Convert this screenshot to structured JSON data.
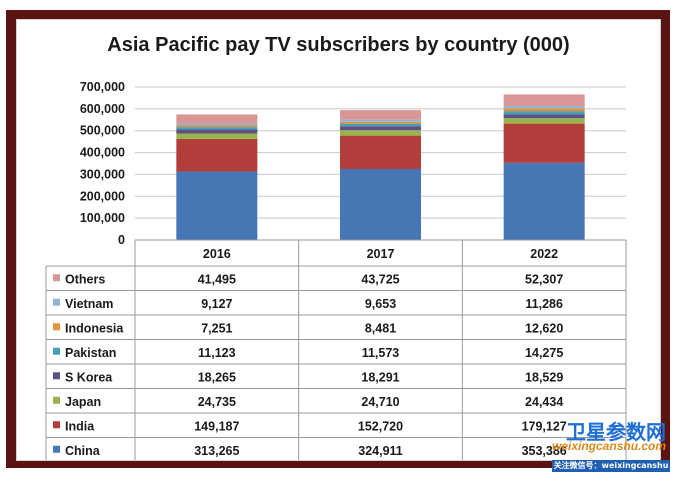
{
  "chart_data": {
    "type": "bar",
    "stacked": true,
    "title": "Asia Pacific pay TV subscribers by country (000)",
    "categories": [
      "2016",
      "2017",
      "2022"
    ],
    "ylim": [
      0,
      700000
    ],
    "yticks": [
      "700,000",
      "600,000",
      "500,000",
      "400,000",
      "300,000",
      "200,000",
      "100,000",
      "0"
    ],
    "ytick_values": [
      700000,
      600000,
      500000,
      400000,
      300000,
      200000,
      100000,
      0
    ],
    "grid": true,
    "legend": "table-rows-below",
    "series": [
      {
        "name": "Others",
        "color": "#d99694",
        "values": [
          41495,
          43725,
          52307
        ],
        "labels": [
          "41,495",
          "43,725",
          "52,307"
        ]
      },
      {
        "name": "Vietnam",
        "color": "#95b3d7",
        "values": [
          9127,
          9653,
          11286
        ],
        "labels": [
          "9,127",
          "9,653",
          "11,286"
        ]
      },
      {
        "name": "Indonesia",
        "color": "#e6913c",
        "values": [
          7251,
          8481,
          12620
        ],
        "labels": [
          "7,251",
          "8,481",
          "12,620"
        ]
      },
      {
        "name": "Pakistan",
        "color": "#46a0b4",
        "values": [
          11123,
          11573,
          14275
        ],
        "labels": [
          "11,123",
          "11,573",
          "14,275"
        ]
      },
      {
        "name": "S Korea",
        "color": "#5e4f85",
        "values": [
          18265,
          18291,
          18529
        ],
        "labels": [
          "18,265",
          "18,291",
          "18,529"
        ]
      },
      {
        "name": "Japan",
        "color": "#98b44c",
        "values": [
          24735,
          24710,
          24434
        ],
        "labels": [
          "24,735",
          "24,710",
          "24,434"
        ]
      },
      {
        "name": "India",
        "color": "#b23d3a",
        "values": [
          149187,
          152720,
          179127
        ],
        "labels": [
          "149,187",
          "152,720",
          "179,127"
        ]
      },
      {
        "name": "China",
        "color": "#4677b4",
        "values": [
          313265,
          324911,
          353386
        ],
        "labels": [
          "313,265",
          "324,911",
          "353,386"
        ]
      }
    ]
  },
  "watermark": {
    "title": "卫星参数网",
    "domain": "weixingcanshu.com",
    "note": "关注微信号：weixingcanshu"
  }
}
